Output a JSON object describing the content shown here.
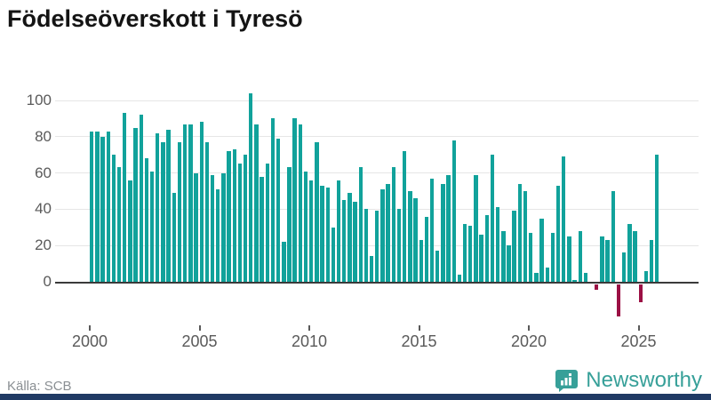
{
  "title": "Födelseöverskott i Tyresö",
  "source": "Källa: SCB",
  "brand": {
    "name": "Newsworthy"
  },
  "colors": {
    "positive_bar": "#11a29b",
    "negative_bar": "#9b1044",
    "grid": "#e6e6e6",
    "zero_axis": "#3a3a3a",
    "axis_text": "#5a5a5a",
    "title_text": "#141414",
    "source_text": "#8a8f93",
    "brand_teal": "#37a099",
    "bottom_strip": "#203a64"
  },
  "chart_data": {
    "type": "bar",
    "title": "Födelseöverskott i Tyresö",
    "xlabel": "",
    "ylabel": "",
    "period": "quarterly",
    "x_tick_labels": [
      "2000",
      "2005",
      "2010",
      "2015",
      "2020",
      "2025"
    ],
    "y_ticks": [
      0,
      20,
      40,
      60,
      80,
      100
    ],
    "ylim": [
      -22,
      106
    ],
    "grid": "horizontal",
    "legend": "none",
    "years": [
      {
        "year": 2000,
        "quarters": [
          83,
          83,
          80,
          83
        ]
      },
      {
        "year": 2001,
        "quarters": [
          70,
          63,
          93,
          56
        ]
      },
      {
        "year": 2002,
        "quarters": [
          85,
          92,
          68,
          61
        ]
      },
      {
        "year": 2003,
        "quarters": [
          82,
          77,
          84,
          49
        ]
      },
      {
        "year": 2004,
        "quarters": [
          77,
          87,
          87,
          60
        ]
      },
      {
        "year": 2005,
        "quarters": [
          88,
          77,
          59,
          51
        ]
      },
      {
        "year": 2006,
        "quarters": [
          60,
          72,
          73,
          65
        ]
      },
      {
        "year": 2007,
        "quarters": [
          70,
          104,
          87,
          58
        ]
      },
      {
        "year": 2008,
        "quarters": [
          65,
          90,
          79,
          22
        ]
      },
      {
        "year": 2009,
        "quarters": [
          63,
          90,
          87,
          61
        ]
      },
      {
        "year": 2010,
        "quarters": [
          56,
          77,
          53,
          52
        ]
      },
      {
        "year": 2011,
        "quarters": [
          30,
          56,
          45,
          49
        ]
      },
      {
        "year": 2012,
        "quarters": [
          44,
          63,
          40,
          14
        ]
      },
      {
        "year": 2013,
        "quarters": [
          39,
          51,
          54,
          63
        ]
      },
      {
        "year": 2014,
        "quarters": [
          40,
          72,
          50,
          46
        ]
      },
      {
        "year": 2015,
        "quarters": [
          23,
          36,
          57,
          17
        ]
      },
      {
        "year": 2016,
        "quarters": [
          54,
          59,
          78,
          4
        ]
      },
      {
        "year": 2017,
        "quarters": [
          32,
          31,
          59,
          26
        ]
      },
      {
        "year": 2018,
        "quarters": [
          37,
          70,
          41,
          28
        ]
      },
      {
        "year": 2019,
        "quarters": [
          20,
          39,
          54,
          50
        ]
      },
      {
        "year": 2020,
        "quarters": [
          27,
          5,
          35,
          8
        ]
      },
      {
        "year": 2021,
        "quarters": [
          27,
          53,
          69,
          25
        ]
      },
      {
        "year": 2022,
        "quarters": [
          1,
          28,
          5,
          0
        ]
      },
      {
        "year": 2023,
        "quarters": [
          -3,
          25,
          23,
          50
        ]
      },
      {
        "year": 2024,
        "quarters": [
          -18,
          16,
          32,
          28
        ]
      },
      {
        "year": 2025,
        "quarters": [
          -10,
          6,
          23,
          70
        ]
      }
    ]
  }
}
